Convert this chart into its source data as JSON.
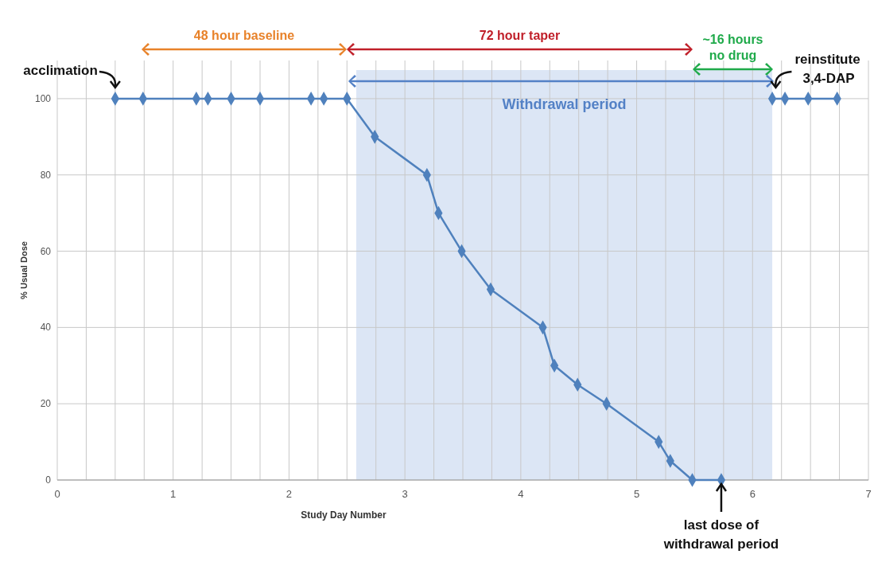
{
  "chart_data": {
    "type": "line",
    "xlabel": "Study Day Number",
    "ylabel": "% Usual Dose",
    "x": [
      0.5,
      0.74,
      1.2,
      1.3,
      1.5,
      1.75,
      2.19,
      2.3,
      2.5,
      2.74,
      3.19,
      3.29,
      3.49,
      3.74,
      4.19,
      4.29,
      4.49,
      4.74,
      5.19,
      5.29,
      5.48,
      5.73,
      5.95,
      6.17,
      6.28,
      6.48,
      6.73
    ],
    "series": [
      {
        "color": "#4f81bd",
        "values": [
          100,
          100,
          100,
          100,
          100,
          100,
          100,
          100,
          100,
          90,
          80,
          70,
          60,
          50,
          40,
          30,
          25,
          20,
          10,
          5,
          0,
          0,
          null,
          100,
          100,
          100,
          100
        ]
      }
    ],
    "xlim": [
      0,
      7
    ],
    "ylim": [
      0,
      110
    ],
    "xticks": [
      0,
      {
        "value": 0.25,
        "label": null
      },
      {
        "value": 0.5,
        "label": null
      },
      {
        "value": 0.75,
        "label": null
      },
      1,
      {
        "value": 1.25,
        "label": null
      },
      {
        "value": 1.5,
        "label": null
      },
      {
        "value": 1.75,
        "label": null
      },
      2,
      {
        "value": 2.25,
        "label": null
      },
      {
        "value": 2.5,
        "label": null
      },
      {
        "value": 2.75,
        "label": null
      },
      3,
      {
        "value": 3.25,
        "label": null
      },
      {
        "value": 3.5,
        "label": null
      },
      {
        "value": 3.75,
        "label": null
      },
      4,
      {
        "value": 4.25,
        "label": null
      },
      {
        "value": 4.5,
        "label": null
      },
      {
        "value": 4.75,
        "label": null
      },
      5,
      {
        "value": 5.25,
        "label": null
      },
      {
        "value": 5.5,
        "label": null
      },
      {
        "value": 5.75,
        "label": null
      },
      6,
      {
        "value": 6.25,
        "label": null
      },
      {
        "value": 6.5,
        "label": null
      },
      {
        "value": 6.75,
        "label": null
      },
      7
    ],
    "yticks": [
      0,
      20,
      40,
      60,
      80,
      100
    ],
    "grid": true,
    "marker": "diamond",
    "line_style": "solid",
    "bands": [
      {
        "axis": "x",
        "from": 2.58,
        "to": 6.17,
        "label": "Withdrawal period",
        "color": "#dce6f5"
      }
    ],
    "annotations": [
      "48 hour baseline",
      "72 hour taper",
      "~16 hours no drug",
      {
        "text": "acclimation",
        "x": 0.5,
        "y": 100
      },
      {
        "text": "reinstitute 3,4-DAP",
        "x": 6.2,
        "y": 100
      },
      {
        "text": "last dose of withdrawal period",
        "x": 5.73,
        "y": 0
      }
    ]
  }
}
